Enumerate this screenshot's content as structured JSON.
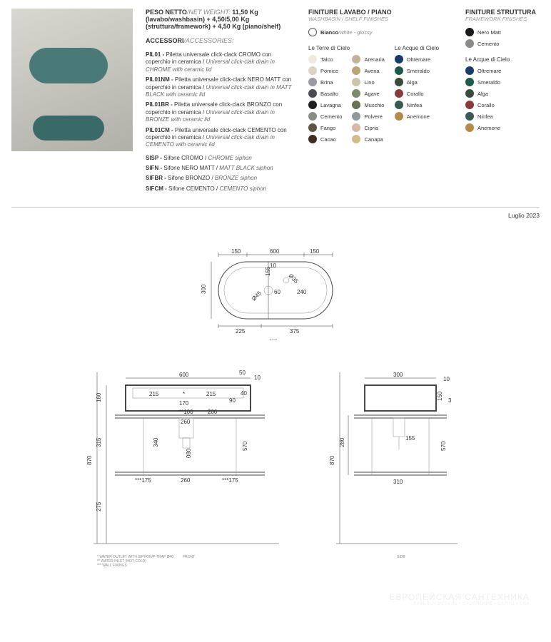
{
  "weight": {
    "title_bold": "PESO NETTO",
    "title_it": "/NET WEIGHT:",
    "line1": "11,50 Kg (lavabo/washbasin) + 4,50/5,00 Kg (struttura/framework) + 4,50 Kg (piano/shelf)"
  },
  "accessories": {
    "title_bold": "ACCESSORI",
    "title_it": "/ACCESSORIES:",
    "items": [
      {
        "code": "PIL01",
        "text": "Piletta universale click-clack CROMO con coperchio in ceramica / ",
        "it": "Universal click-clak drain in CHROME with ceramic lid"
      },
      {
        "code": "PIL01NM",
        "text": "Piletta universale click-clack NERO MATT con coperchio in ceramica / ",
        "it": "Universal click-clak drain in MATT BLACK with ceramic lid"
      },
      {
        "code": "PIL01BR",
        "text": "Piletta universale click-clack BRONZO con coperchio in ceramica / ",
        "it": "Universal click-clak drain in BRONZE with ceramic lid"
      },
      {
        "code": "PIL01CM",
        "text": "Piletta universale click-clack CEMENTO con coperchio in ceramica / ",
        "it": "Universal click-clak drain in CEMENTO with ceramic lid"
      }
    ],
    "siphons": [
      {
        "code": "SISP",
        "text": "Sifone CROMO / ",
        "it": "CHROME siphon"
      },
      {
        "code": "SIFN",
        "text": "Sifone NERO MATT / ",
        "it": "MATT BLACK siphon"
      },
      {
        "code": "SIFBR",
        "text": "Sifone BRONZO / ",
        "it": "BRONZE siphon"
      },
      {
        "code": "SIFCM",
        "text": "Sifone CEMENTO / ",
        "it": "CEMENTO siphon"
      }
    ]
  },
  "finishes_piano": {
    "title": "FINITURE LAVABO / PIANO",
    "subtitle": "WASHBASIN / SHELF FINISHES",
    "bianco_label": "Bianco",
    "bianco_it": "/white - glossy",
    "group1_title": "Le Terre di Cielo",
    "group2_title": "Le Acque di Cielo",
    "terre_col1": [
      {
        "color": "#efe9de",
        "label": "Talco"
      },
      {
        "color": "#dcd3c6",
        "label": "Pomice"
      },
      {
        "color": "#9a9aa2",
        "label": "Brina"
      },
      {
        "color": "#4a4a52",
        "label": "Basalto"
      },
      {
        "color": "#1e1e1e",
        "label": "Lavagna"
      },
      {
        "color": "#8c8c86",
        "label": "Cemento"
      },
      {
        "color": "#5c5444",
        "label": "Fango"
      },
      {
        "color": "#3c2e22",
        "label": "Cacao"
      }
    ],
    "terre_col2": [
      {
        "color": "#c2b39b",
        "label": "Arenaria"
      },
      {
        "color": "#b8a678",
        "label": "Avena"
      },
      {
        "color": "#ccc4a8",
        "label": "Lino"
      },
      {
        "color": "#7a8c6c",
        "label": "Agave"
      },
      {
        "color": "#6c7256",
        "label": "Muschio"
      },
      {
        "color": "#8e9aa0",
        "label": "Polvere"
      },
      {
        "color": "#d8b8a8",
        "label": "Cipria"
      },
      {
        "color": "#d2bc88",
        "label": "Canapa"
      }
    ],
    "acque": [
      {
        "color": "#1a3a6a",
        "label": "Oltremare"
      },
      {
        "color": "#1e5a4c",
        "label": "Smeraldo"
      },
      {
        "color": "#3a4a3c",
        "label": "Alga"
      },
      {
        "color": "#8a3a3a",
        "label": "Corallo"
      },
      {
        "color": "#3a5a58",
        "label": "Ninfea"
      },
      {
        "color": "#b88a4a",
        "label": "Anemone"
      }
    ]
  },
  "finishes_struttura": {
    "title": "FINITURE STRUTTURA",
    "subtitle": "FRAMEWORK FINISHES",
    "base": [
      {
        "color": "#1a1a1a",
        "label": "Nero Matt"
      },
      {
        "color": "#8c8c86",
        "label": "Cemento"
      }
    ],
    "group_title": "Le Acque di Cielo",
    "acque": [
      {
        "color": "#1a3a6a",
        "label": "Oltremare"
      },
      {
        "color": "#1e5a4c",
        "label": "Smeraldo"
      },
      {
        "color": "#3a4a3c",
        "label": "Alga"
      },
      {
        "color": "#8a3a3a",
        "label": "Corallo"
      },
      {
        "color": "#3a5a58",
        "label": "Ninfea"
      },
      {
        "color": "#b88a4a",
        "label": "Anemone"
      }
    ]
  },
  "date": "Luglio 2023",
  "diagram_top": {
    "caption": "TOP",
    "dims": {
      "w_total": "600",
      "w_left": "150",
      "w_right": "150",
      "w_bl": "225",
      "w_br": "375",
      "h": "300",
      "h_part": "155",
      "d1": "Ø45",
      "d2": "Ø35",
      "off_top": "10",
      "off_r": "240",
      "r_center": "60"
    }
  },
  "diagram_front": {
    "caption": "FRONT",
    "dims": {
      "h_total": "870",
      "h_basin": "160",
      "h_mid": "315",
      "h_low": "275",
      "w_total": "600",
      "w_inner_l": "215",
      "w_inner_c": "170",
      "gap50": "50",
      "gap40": "40",
      "gap90": "90",
      "t10": "10",
      "c100": "100",
      "c200": "200",
      "c260": "260",
      "c340": "340",
      "h570": "570",
      "c215b": "215",
      "c175": "175",
      "c260b": "260",
      "c080": "080"
    }
  },
  "diagram_side": {
    "caption": "SIDE",
    "dims": {
      "h_total": "870",
      "w": "300",
      "h_basin": "150",
      "h_mid": "280",
      "c155": "155",
      "c310": "310",
      "t10": "10",
      "d3": "3",
      "h570": "570"
    }
  },
  "footnotes": {
    "l1": "* WATER OUTLET WITH SIPHON/P-TRAP Ø40",
    "l2": "** WATER INLET (HOT-COLD)",
    "l3": "*** WALL FIXINGS"
  },
  "watermark": {
    "big": "ЕВРОПЕЙСКАЯ САНТЕХНИКА",
    "small": "КАФЕЛЬ • МЕБЕЛЬ • ОТОПЛЕНИЕ • САУНЫ • СПА"
  }
}
